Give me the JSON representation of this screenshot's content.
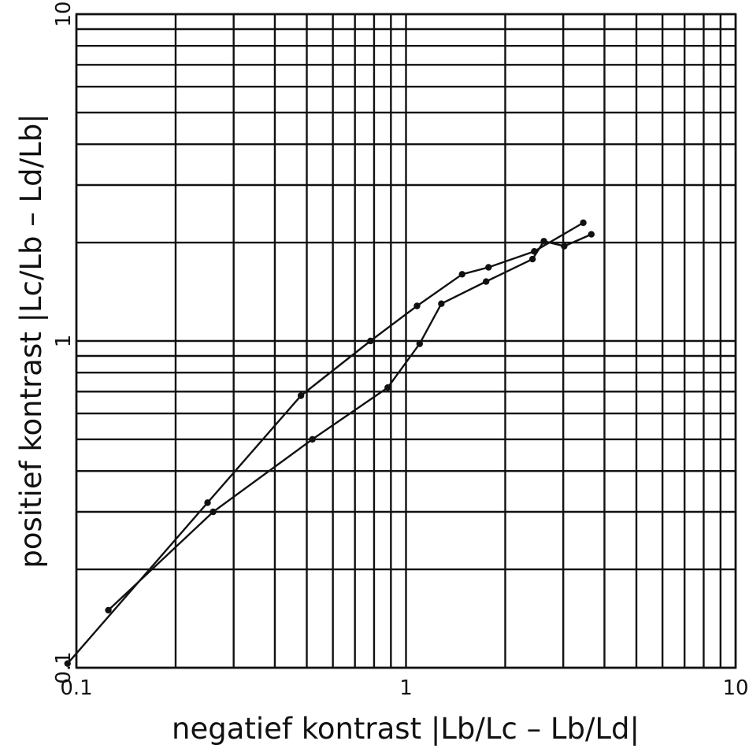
{
  "chart_data": {
    "type": "line",
    "xlabel": "negatief kontrast |Lb/Lc – Lb/Ld|",
    "ylabel": "positief kontrast |Lc/Lb – Ld/Lb|",
    "xscale": "log",
    "yscale": "log",
    "xlim": [
      0.1,
      10
    ],
    "ylim": [
      0.1,
      10
    ],
    "grid": true,
    "x_ticks": [
      "0.1",
      "1",
      "10"
    ],
    "y_ticks": [
      "0.1",
      "1",
      "10"
    ],
    "series": [
      {
        "x": [
          0.094,
          0.25,
          0.48,
          0.78,
          1.08,
          1.48,
          1.78,
          2.45,
          3.45
        ],
        "y": [
          0.103,
          0.32,
          0.68,
          1.0,
          1.28,
          1.6,
          1.68,
          1.88,
          2.3
        ]
      },
      {
        "x": [
          0.125,
          0.26,
          0.52,
          0.88,
          1.1,
          1.28,
          1.75,
          2.42,
          2.62,
          3.02,
          3.65
        ],
        "y": [
          0.15,
          0.3,
          0.5,
          0.72,
          0.98,
          1.3,
          1.52,
          1.78,
          2.02,
          1.95,
          2.12
        ]
      }
    ]
  }
}
